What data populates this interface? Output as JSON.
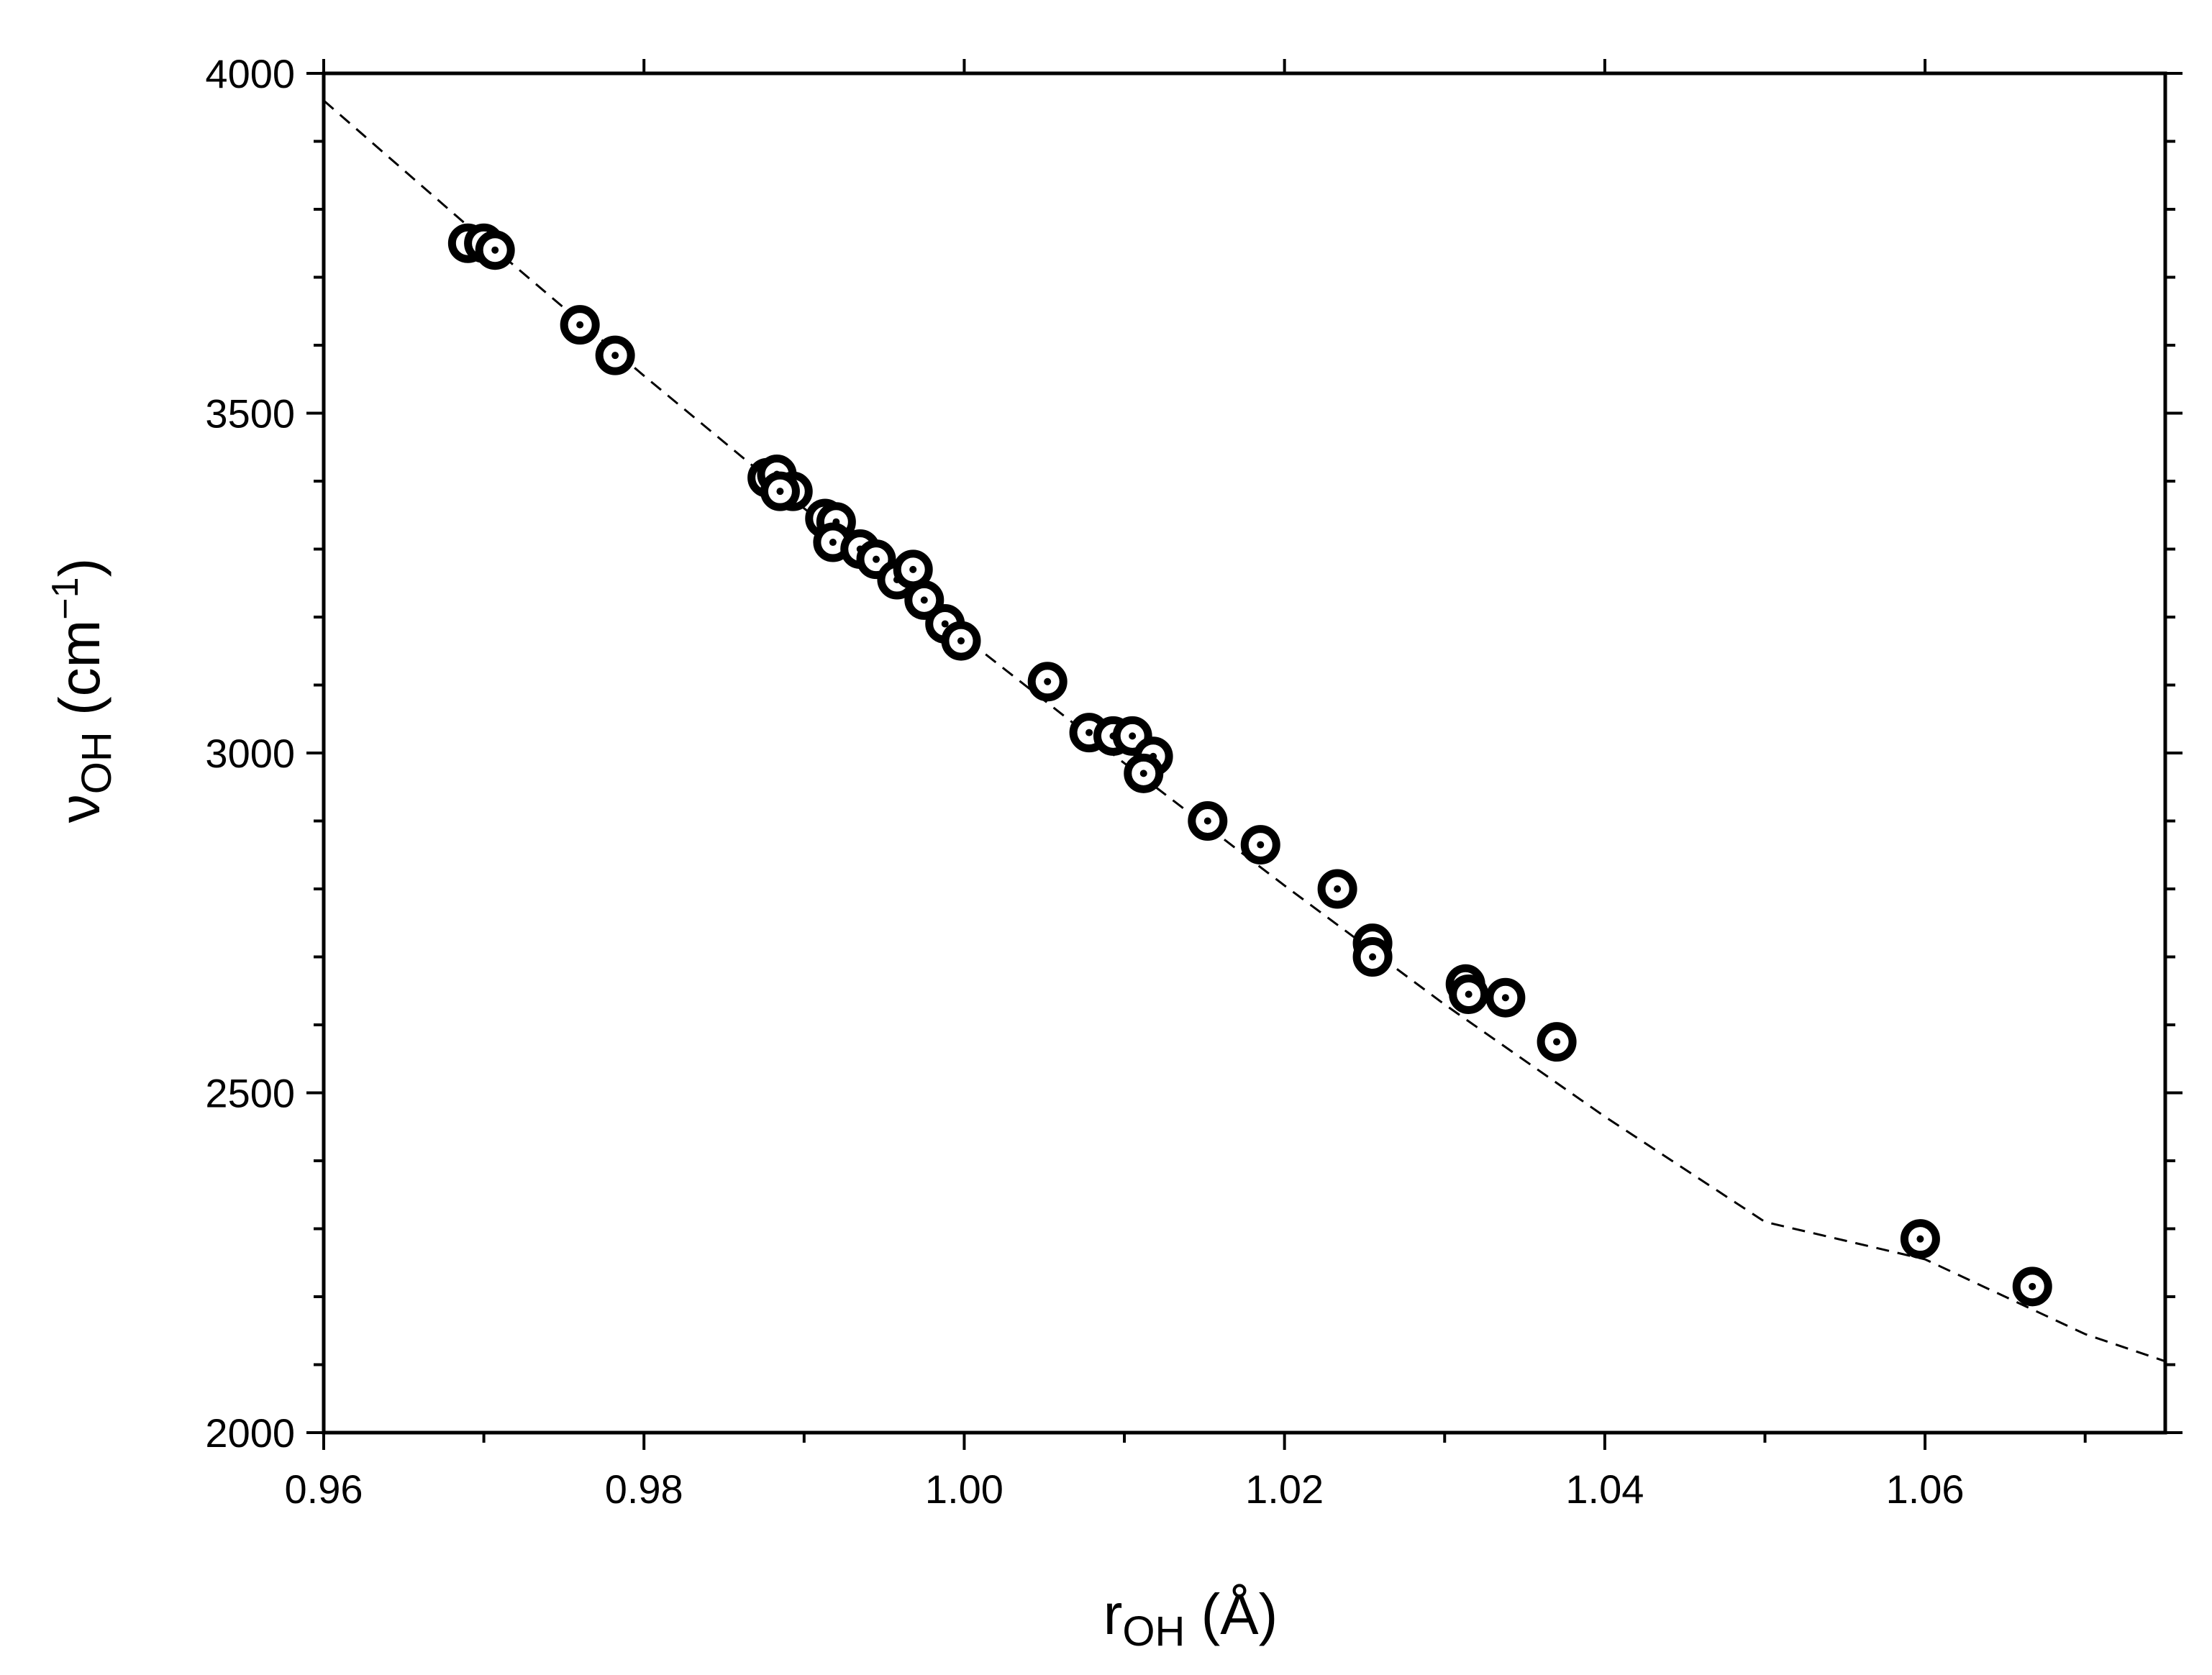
{
  "chart_data": {
    "type": "scatter",
    "title": "",
    "x_axis": {
      "label_main": "r",
      "label_sub": "OH",
      "label_unit": " (Å)",
      "range": [
        0.96,
        1.075
      ],
      "ticks": [
        "0.96",
        "0.98",
        "1.00",
        "1.02",
        "1.04",
        "1.06"
      ],
      "tick_values": [
        0.96,
        0.98,
        1.0,
        1.02,
        1.04,
        1.06
      ],
      "minor_tick_values": [
        0.97,
        0.99,
        1.01,
        1.03,
        1.05,
        1.07
      ]
    },
    "y_axis": {
      "label_main": "ν",
      "label_sub": "OH",
      "label_unit_open": " (cm",
      "label_sup": "−1",
      "label_unit_close": ")",
      "range": [
        2000,
        4000
      ],
      "ticks": [
        "2000",
        "2500",
        "3000",
        "3500",
        "4000"
      ],
      "tick_values": [
        2000,
        2500,
        3000,
        3500,
        4000
      ],
      "minor_tick_values": [
        2100,
        2200,
        2300,
        2400,
        2600,
        2700,
        2800,
        2900,
        3100,
        3200,
        3300,
        3400,
        3600,
        3700,
        3800,
        3900
      ]
    },
    "grid": false,
    "legend": "none",
    "marker": "open-circle-with-dot",
    "colors": {
      "marker": "#000000",
      "fit_line": "#000000",
      "axes": "#000000",
      "background": "#ffffff"
    },
    "series": [
      {
        "points": [
          {
            "x": 0.969,
            "y": 3750
          },
          {
            "x": 0.97,
            "y": 3750
          },
          {
            "x": 0.9707,
            "y": 3740
          },
          {
            "x": 0.976,
            "y": 3630
          },
          {
            "x": 0.9782,
            "y": 3585
          },
          {
            "x": 0.9877,
            "y": 3405
          },
          {
            "x": 0.9883,
            "y": 3410
          },
          {
            "x": 0.9893,
            "y": 3385
          },
          {
            "x": 0.9885,
            "y": 3385
          },
          {
            "x": 0.9913,
            "y": 3345
          },
          {
            "x": 0.992,
            "y": 3340
          },
          {
            "x": 0.9918,
            "y": 3310
          },
          {
            "x": 0.9935,
            "y": 3300
          },
          {
            "x": 0.9945,
            "y": 3285
          },
          {
            "x": 0.9958,
            "y": 3255
          },
          {
            "x": 0.9968,
            "y": 3270
          },
          {
            "x": 0.9975,
            "y": 3225
          },
          {
            "x": 0.9988,
            "y": 3190
          },
          {
            "x": 0.9998,
            "y": 3165
          },
          {
            "x": 1.0052,
            "y": 3105
          },
          {
            "x": 1.0078,
            "y": 3030
          },
          {
            "x": 1.0093,
            "y": 3025
          },
          {
            "x": 1.0105,
            "y": 3025
          },
          {
            "x": 1.0118,
            "y": 2995
          },
          {
            "x": 1.0112,
            "y": 2970
          },
          {
            "x": 1.0152,
            "y": 2900
          },
          {
            "x": 1.0185,
            "y": 2865
          },
          {
            "x": 1.0233,
            "y": 2800
          },
          {
            "x": 1.0255,
            "y": 2720
          },
          {
            "x": 1.0255,
            "y": 2700
          },
          {
            "x": 1.0313,
            "y": 2660
          },
          {
            "x": 1.0315,
            "y": 2645
          },
          {
            "x": 1.0338,
            "y": 2640
          },
          {
            "x": 1.037,
            "y": 2575
          },
          {
            "x": 1.0597,
            "y": 2285
          },
          {
            "x": 1.0667,
            "y": 2215
          }
        ]
      }
    ],
    "fit_curve": {
      "style": "dashed",
      "x": [
        0.96,
        0.97,
        0.98,
        0.99,
        1.0,
        1.01,
        1.02,
        1.03,
        1.04,
        1.05,
        1.06,
        1.07,
        1.075
      ],
      "y": [
        3960,
        3755,
        3555,
        3360,
        3170,
        2985,
        2805,
        2630,
        2465,
        2310,
        2255,
        2145,
        2105
      ]
    }
  }
}
